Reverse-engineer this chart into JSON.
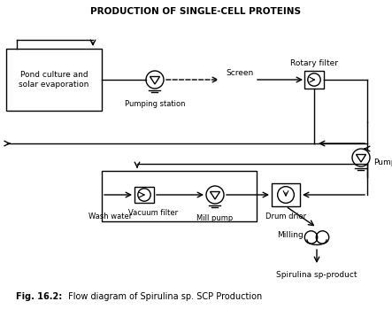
{
  "title": "PRODUCTION OF SINGLE-CELL PROTEINS",
  "caption_bold": "Fig. 16.2:",
  "caption_normal": " Flow diagram of Spirulina sp. SCP Production",
  "bg_color": "#ffffff",
  "line_color": "#000000",
  "labels": {
    "pond": "Pond culture and\nsolar evaporation",
    "pumping": "Pumping station",
    "screen": "Screen",
    "rotary": "Rotary filter",
    "pump": "Pump",
    "vacuum": "Vacuum filter",
    "wash": "Wash water",
    "mill": "Mill pump",
    "drum": "Drum drier",
    "milling": "Milling",
    "product": "Spirulina sp-product"
  }
}
